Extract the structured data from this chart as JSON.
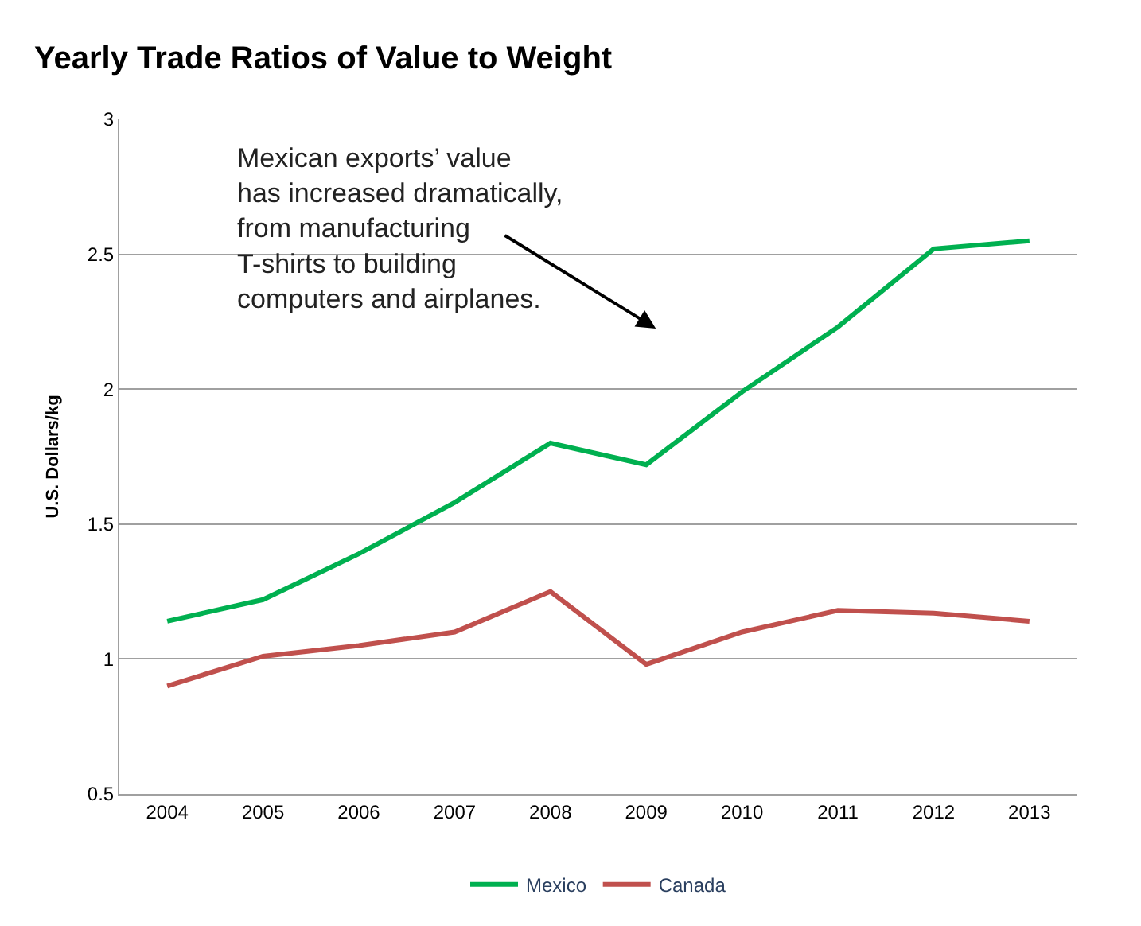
{
  "chart_data": {
    "type": "line",
    "title": "Yearly Trade Ratios of Value to Weight",
    "ylabel": "U.S. Dollars/kg",
    "categories": [
      "2004",
      "2005",
      "2006",
      "2007",
      "2008",
      "2009",
      "2010",
      "2011",
      "2012",
      "2013"
    ],
    "series": [
      {
        "name": "Mexico",
        "color": "#00b050",
        "values": [
          1.14,
          1.22,
          1.39,
          1.58,
          1.8,
          1.72,
          1.99,
          2.23,
          2.52,
          2.55
        ]
      },
      {
        "name": "Canada",
        "color": "#c0504d",
        "values": [
          0.9,
          1.01,
          1.05,
          1.1,
          1.25,
          0.98,
          1.1,
          1.18,
          1.17,
          1.14
        ]
      }
    ],
    "ylim": [
      0.5,
      3
    ],
    "yticks": [
      {
        "value": 0.5,
        "label": "0.5"
      },
      1,
      1.5,
      2,
      2.5,
      3
    ],
    "grid": "y",
    "legend": "bottom",
    "marker": "none",
    "line_style": "solid",
    "annotations": [
      "Mexican exports’ value\nhas increased dramatically,\nfrom manufacturing\nT-shirts to building\ncomputers and airplanes."
    ]
  }
}
